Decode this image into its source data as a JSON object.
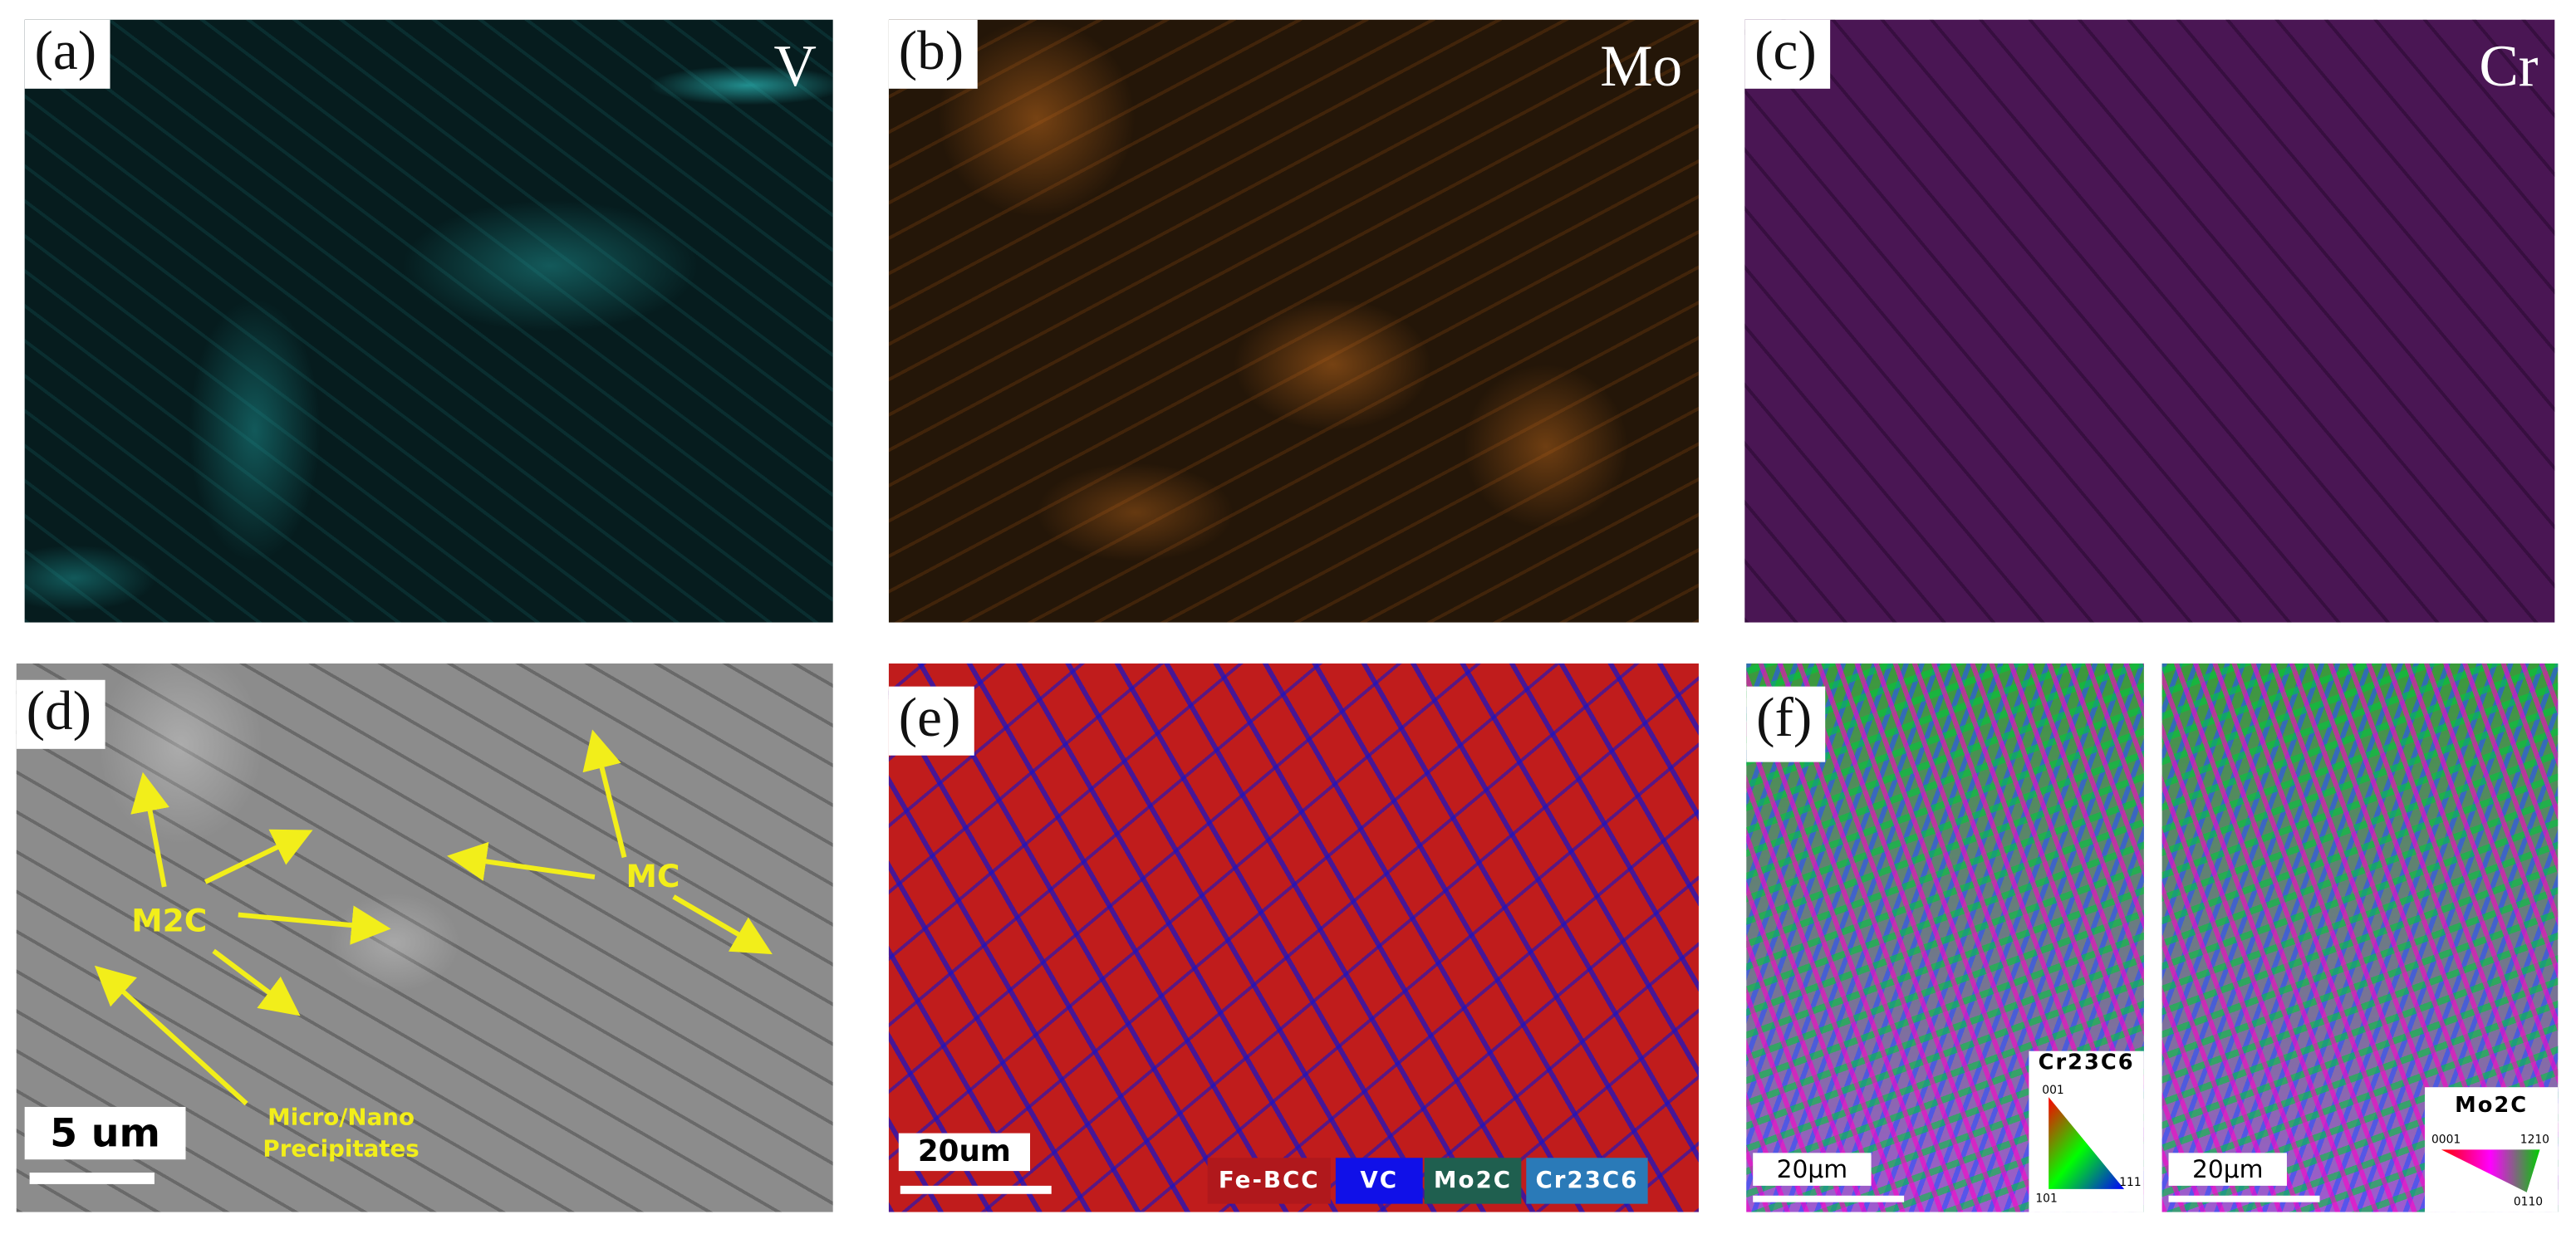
{
  "panels": [
    {
      "label": "(a)",
      "element": "V"
    },
    {
      "label": "(b)",
      "element": "Mo"
    },
    {
      "label": "(c)",
      "element": "Cr"
    },
    {
      "label": "(d)",
      "annotations": {
        "m2c": "M2C",
        "mc": "MC",
        "precipitates": [
          "Micro/Nano",
          "Precipitates"
        ]
      },
      "scale_bar": "5 um"
    },
    {
      "label": "(e)",
      "scale_bar": "20um",
      "legend": [
        "Fe-BCC",
        "VC",
        "Mo2C",
        "Cr23C6"
      ]
    },
    {
      "label": "(f)",
      "maps": [
        {
          "phase": "Cr23C6",
          "scale_bar": "20μm",
          "ipf_labels": [
            "001",
            "101",
            "111"
          ]
        },
        {
          "phase": "Mo2C",
          "scale_bar": "20μm",
          "ipf_labels": [
            "0001",
            "1210",
            "0110"
          ]
        }
      ]
    }
  ]
}
